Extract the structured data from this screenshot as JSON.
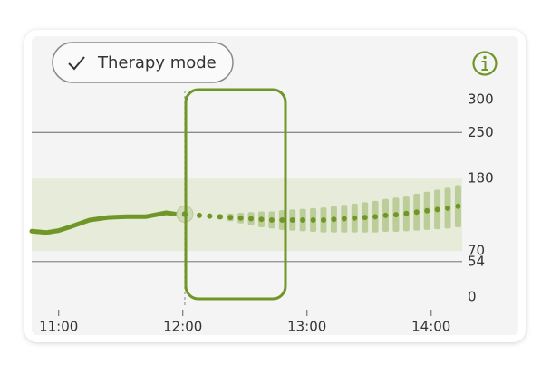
{
  "button": {
    "label": "Therapy mode"
  },
  "chart_data": {
    "type": "line",
    "xlim": [
      647,
      855
    ],
    "xticks": [
      {
        "value": 660,
        "label": "11:00"
      },
      {
        "value": 720,
        "label": "12:00"
      },
      {
        "value": 780,
        "label": "13:00"
      },
      {
        "value": 840,
        "label": "14:00"
      }
    ],
    "ylim": [
      0,
      300
    ],
    "yticks": [
      300,
      250,
      180,
      70,
      54,
      0
    ],
    "grid_values": [
      250,
      54
    ],
    "target_range": [
      70,
      180
    ],
    "color": "#6f9626",
    "history": {
      "x": [
        647,
        654,
        660,
        666,
        675,
        684,
        693,
        702,
        712,
        719
      ],
      "values": [
        100,
        98,
        101,
        107,
        117,
        121,
        122,
        122,
        128,
        125
      ]
    },
    "current": {
      "x": 721,
      "value": 126
    },
    "forecast": {
      "x": [
        728,
        733,
        738,
        743,
        748,
        753,
        758,
        763,
        768,
        773,
        778,
        783,
        788,
        793,
        798,
        803,
        808,
        813,
        818,
        823,
        828,
        833,
        838,
        843,
        848,
        853
      ],
      "values": [
        124,
        123,
        122,
        121,
        120,
        119,
        118,
        117,
        117,
        117,
        117,
        117,
        117,
        118,
        119,
        120,
        121,
        122,
        124,
        125,
        127,
        129,
        131,
        133,
        135,
        138
      ],
      "low": [
        124,
        121,
        118,
        115,
        112,
        109,
        106,
        104,
        102,
        101,
        100,
        99,
        98,
        98,
        98,
        98,
        98,
        98,
        99,
        99,
        100,
        101,
        102,
        103,
        104,
        106
      ],
      "high": [
        124,
        125,
        126,
        127,
        128,
        129,
        130,
        130,
        132,
        133,
        134,
        135,
        136,
        138,
        140,
        142,
        144,
        146,
        149,
        151,
        154,
        157,
        160,
        163,
        166,
        170
      ]
    }
  }
}
